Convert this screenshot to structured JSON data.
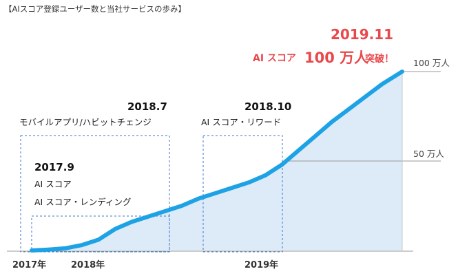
{
  "title": "【AIスコア登録ユーザー数と当社サービスの歩み】",
  "headline": {
    "date": "2019.11",
    "prefix": "AI スコア",
    "value": "100 万人",
    "suffix": "突破！"
  },
  "colors": {
    "line": "#1ea2e6",
    "area": "#dcebf7",
    "headline": "#e8484c",
    "dashed_box": "#3b76c8",
    "reference_line": "#9a9a9a",
    "axis": "#9a9a9a"
  },
  "milestones": [
    {
      "date": "2017.9",
      "labels": [
        "AI スコア",
        "AI スコア・レンディング"
      ]
    },
    {
      "date": "2018.7",
      "labels": [
        "モバイルアプリ/ハビットチェンジ"
      ]
    },
    {
      "date": "2018.10",
      "labels": [
        "AI スコア・リワード"
      ]
    }
  ],
  "chart_data": {
    "type": "area",
    "title": "【AIスコア登録ユーザー数と当社サービスの歩み】",
    "xlabel": "",
    "ylabel": "",
    "x_tick_labels": [
      "2017年",
      "2018年",
      "2019年"
    ],
    "x_ticks": [
      2017.7,
      2018.0,
      2019.0
    ],
    "y_reference_labels": [
      {
        "value": 1000000,
        "label": "100 万人"
      },
      {
        "value": 500000,
        "label": "50 万人"
      }
    ],
    "ylim": [
      0,
      1000000
    ],
    "xlim": [
      2017.7,
      2019.92
    ],
    "grid": false,
    "series": [
      {
        "x": [
          2017.7,
          2017.8,
          2017.9,
          2018.0,
          2018.1,
          2018.2,
          2018.3,
          2018.4,
          2018.5,
          2018.6,
          2018.7,
          2018.8,
          2018.9,
          2019.0,
          2019.1,
          2019.2,
          2019.3,
          2019.4,
          2019.5,
          2019.6,
          2019.7,
          2019.8,
          2019.92
        ],
        "values": [
          0,
          5000,
          12000,
          30000,
          60000,
          120000,
          160000,
          190000,
          220000,
          250000,
          290000,
          320000,
          350000,
          380000,
          420000,
          480000,
          560000,
          640000,
          720000,
          790000,
          860000,
          930000,
          1000000
        ]
      }
    ]
  }
}
